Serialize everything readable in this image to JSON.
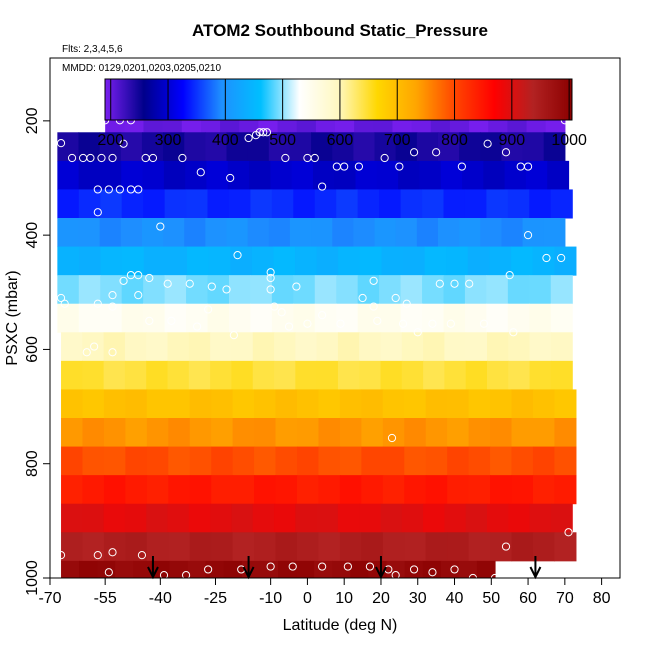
{
  "chart_data": {
    "type": "heatmap",
    "title": "ATOM2 Southbound Static_Pressure",
    "flights_note": "Flts: 2,3,4,5,6",
    "dates_note": "MMDD: 0129,0201,0203,0205,0210",
    "xlabel": "Latitude (deg N)",
    "ylabel": "PSXC (mbar)",
    "xlim": [
      -70,
      85
    ],
    "ylim": [
      1000,
      90
    ],
    "x_ticks": [
      -70,
      -55,
      -40,
      -25,
      -10,
      0,
      10,
      20,
      30,
      40,
      50,
      60,
      70,
      80
    ],
    "y_ticks": [
      200,
      400,
      600,
      800,
      1000
    ],
    "colorbar": {
      "range": [
        190,
        1005
      ],
      "ticks": [
        200,
        300,
        400,
        500,
        600,
        700,
        800,
        900,
        1000
      ],
      "stops": [
        "#7a1ff0",
        "#00008b",
        "#0000ff",
        "#1e90ff",
        "#00bfff",
        "#ffffff",
        "#fff8c0",
        "#ffd700",
        "#ffa500",
        "#ff4500",
        "#ff0000",
        "#b22222",
        "#8b0000"
      ]
    },
    "bands": [
      {
        "p": [
          180,
          220
        ],
        "lat": [
          -55,
          70
        ]
      },
      {
        "p": [
          220,
          270
        ],
        "lat": [
          -68,
          70
        ]
      },
      {
        "p": [
          270,
          320
        ],
        "lat": [
          -68,
          71
        ]
      },
      {
        "p": [
          320,
          370
        ],
        "lat": [
          -68,
          72
        ]
      },
      {
        "p": [
          370,
          420
        ],
        "lat": [
          -68,
          70
        ]
      },
      {
        "p": [
          420,
          470
        ],
        "lat": [
          -68,
          73
        ]
      },
      {
        "p": [
          470,
          520
        ],
        "lat": [
          -68,
          72
        ]
      },
      {
        "p": [
          520,
          570
        ],
        "lat": [
          -68,
          72
        ]
      },
      {
        "p": [
          570,
          620
        ],
        "lat": [
          -67,
          72
        ]
      },
      {
        "p": [
          620,
          670
        ],
        "lat": [
          -67,
          72
        ]
      },
      {
        "p": [
          670,
          720
        ],
        "lat": [
          -67,
          73
        ]
      },
      {
        "p": [
          720,
          770
        ],
        "lat": [
          -67,
          73
        ]
      },
      {
        "p": [
          770,
          820
        ],
        "lat": [
          -67,
          73
        ]
      },
      {
        "p": [
          820,
          870
        ],
        "lat": [
          -67,
          73
        ]
      },
      {
        "p": [
          870,
          920
        ],
        "lat": [
          -67,
          72
        ]
      },
      {
        "p": [
          920,
          970
        ],
        "lat": [
          -67,
          73
        ]
      },
      {
        "p": [
          970,
          1010
        ],
        "lat": [
          -67,
          51
        ]
      }
    ],
    "points": [
      [
        -55,
        199
      ],
      [
        -51,
        199
      ],
      [
        -48,
        199
      ],
      [
        -67,
        239
      ],
      [
        -64,
        265
      ],
      [
        -61,
        265
      ],
      [
        -59,
        265
      ],
      [
        -56,
        265
      ],
      [
        -53,
        265
      ],
      [
        -50,
        240
      ],
      [
        -44,
        265
      ],
      [
        -42,
        265
      ],
      [
        -34,
        265
      ],
      [
        -29,
        290
      ],
      [
        -21,
        300
      ],
      [
        -16,
        230
      ],
      [
        -14,
        225
      ],
      [
        -13,
        220
      ],
      [
        -12,
        220
      ],
      [
        -11,
        220
      ],
      [
        -6,
        265
      ],
      [
        0,
        265
      ],
      [
        2,
        265
      ],
      [
        4,
        315
      ],
      [
        8,
        280
      ],
      [
        10,
        280
      ],
      [
        14,
        280
      ],
      [
        21,
        265
      ],
      [
        25,
        280
      ],
      [
        29,
        255
      ],
      [
        35,
        255
      ],
      [
        42,
        280
      ],
      [
        49,
        240
      ],
      [
        54,
        255
      ],
      [
        58,
        280
      ],
      [
        60,
        280
      ],
      [
        70,
        199
      ],
      [
        72,
        199
      ],
      [
        -57,
        320
      ],
      [
        -54,
        320
      ],
      [
        -51,
        320
      ],
      [
        -48,
        320
      ],
      [
        -46,
        320
      ],
      [
        -40,
        385
      ],
      [
        -57,
        360
      ],
      [
        -53,
        505
      ],
      [
        -46,
        470
      ],
      [
        -43,
        475
      ],
      [
        -38,
        485
      ],
      [
        -32,
        485
      ],
      [
        -26,
        490
      ],
      [
        -22,
        495
      ],
      [
        -19,
        435
      ],
      [
        -10,
        465
      ],
      [
        -10,
        475
      ],
      [
        -10,
        495
      ],
      [
        -3,
        490
      ],
      [
        0,
        555
      ],
      [
        -50,
        480
      ],
      [
        -48,
        470
      ],
      [
        -67,
        510
      ],
      [
        -66,
        520
      ],
      [
        -57,
        520
      ],
      [
        -53,
        525
      ],
      [
        -46,
        505
      ],
      [
        -43,
        550
      ],
      [
        -37,
        550
      ],
      [
        -30,
        560
      ],
      [
        -27,
        530
      ],
      [
        -20,
        575
      ],
      [
        -9,
        525
      ],
      [
        -7,
        535
      ],
      [
        -5,
        560
      ],
      [
        4,
        540
      ],
      [
        9,
        555
      ],
      [
        15,
        510
      ],
      [
        18,
        525
      ],
      [
        18,
        480
      ],
      [
        19,
        550
      ],
      [
        24,
        510
      ],
      [
        26,
        555
      ],
      [
        27,
        520
      ],
      [
        30,
        570
      ],
      [
        34,
        555
      ],
      [
        36,
        485
      ],
      [
        39,
        555
      ],
      [
        40,
        485
      ],
      [
        44,
        485
      ],
      [
        48,
        555
      ],
      [
        55,
        470
      ],
      [
        56,
        570
      ],
      [
        60,
        400
      ],
      [
        65,
        440
      ],
      [
        69,
        440
      ],
      [
        -60,
        605
      ],
      [
        -58,
        595
      ],
      [
        -53,
        605
      ],
      [
        23,
        755
      ],
      [
        -67,
        960
      ],
      [
        -57,
        960
      ],
      [
        -53,
        955
      ],
      [
        -54,
        990
      ],
      [
        -45,
        960
      ],
      [
        -39,
        995
      ],
      [
        -33,
        995
      ],
      [
        -27,
        985
      ],
      [
        -18,
        985
      ],
      [
        -10,
        980
      ],
      [
        -4,
        980
      ],
      [
        4,
        980
      ],
      [
        11,
        980
      ],
      [
        17,
        980
      ],
      [
        22,
        985
      ],
      [
        24,
        995
      ],
      [
        29,
        985
      ],
      [
        34,
        990
      ],
      [
        40,
        985
      ],
      [
        45,
        1000
      ],
      [
        51,
        1000
      ],
      [
        54,
        945
      ],
      [
        71,
        920
      ]
    ],
    "arrows_lat": [
      -42,
      -16,
      20,
      62
    ],
    "grid": false,
    "legend": "colorbar top"
  }
}
